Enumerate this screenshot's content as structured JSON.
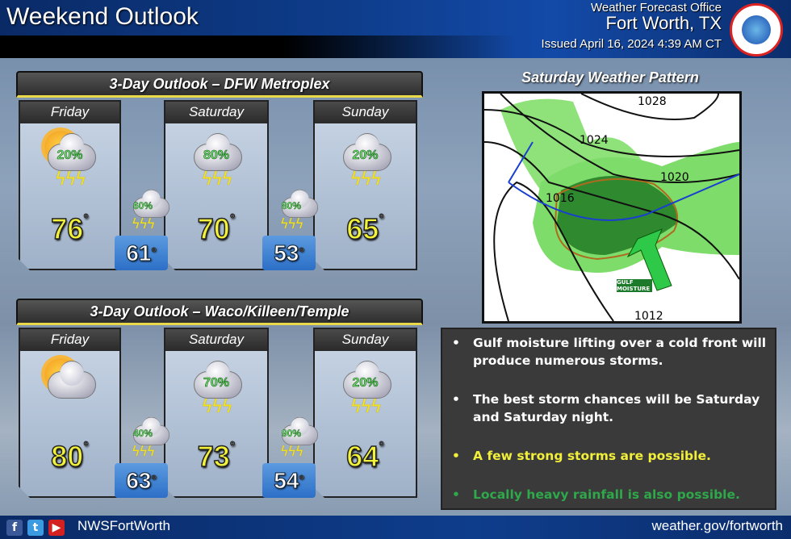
{
  "header": {
    "title": "Weekend Outlook",
    "office": "Weather Forecast Office",
    "city": "Fort Worth, TX",
    "issued": "Issued April 16, 2024 4:39 AM CT",
    "logo_text": "NATIONAL WEATHER SERVICE"
  },
  "degree_symbol": "°",
  "outlooks": [
    {
      "title": "3-Day Outlook – DFW Metroplex",
      "days": [
        {
          "label": "Friday",
          "high": "76",
          "pop": "20%",
          "icon": "partly-sunny-thunderstorms-icon"
        },
        {
          "label": "Saturday",
          "high": "70",
          "pop": "80%",
          "icon": "thunderstorms-icon"
        },
        {
          "label": "Sunday",
          "high": "65",
          "pop": "20%",
          "icon": "thunderstorms-icon"
        }
      ],
      "nights": [
        {
          "low": "61",
          "pop": "60%",
          "icon": "thunderstorms-icon"
        },
        {
          "low": "53",
          "pop": "80%",
          "icon": "thunderstorms-icon"
        }
      ]
    },
    {
      "title": "3-Day Outlook – Waco/Killeen/Temple",
      "days": [
        {
          "label": "Friday",
          "high": "80",
          "pop": "",
          "icon": "partly-cloudy-icon"
        },
        {
          "label": "Saturday",
          "high": "73",
          "pop": "70%",
          "icon": "thunderstorms-icon"
        },
        {
          "label": "Sunday",
          "high": "64",
          "pop": "20%",
          "icon": "thunderstorms-icon"
        }
      ],
      "nights": [
        {
          "low": "63",
          "pop": "40%",
          "icon": "thunderstorms-icon"
        },
        {
          "low": "54",
          "pop": "90%",
          "icon": "thunderstorms-icon"
        }
      ]
    }
  ],
  "map": {
    "title": "Saturday Weather Pattern",
    "isobars": [
      "1028",
      "1024",
      "1020",
      "1016",
      "1012"
    ],
    "arrow_label": "GULF MOISTURE"
  },
  "notes": [
    {
      "text": "Gulf moisture lifting over a cold front will produce numerous storms.",
      "color": "#ffffff"
    },
    {
      "text": "The best storm chances will be Saturday and Saturday night.",
      "color": "#ffffff"
    },
    {
      "text": "A few strong storms are possible.",
      "color": "#f2ef3a"
    },
    {
      "text": "Locally heavy rainfall is also possible.",
      "color": "#2ea84a"
    }
  ],
  "footer": {
    "handle": "NWSFortWorth",
    "website": "weather.gov/fortworth",
    "social": [
      {
        "icon": "facebook-icon",
        "glyph": "f",
        "color": "#3b5998"
      },
      {
        "icon": "twitter-icon",
        "glyph": "t",
        "color": "#3a9be0"
      },
      {
        "icon": "youtube-icon",
        "glyph": "▶",
        "color": "#d32020"
      }
    ]
  }
}
